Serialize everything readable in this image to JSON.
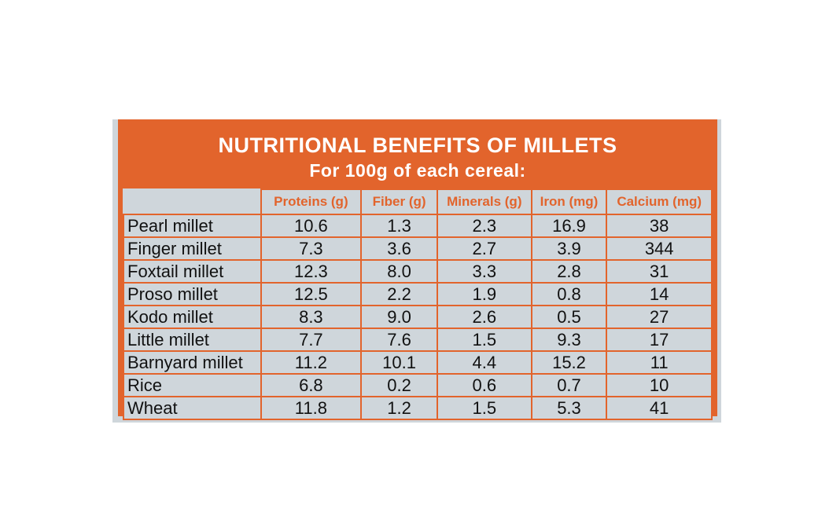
{
  "header": {
    "title": "NUTRITIONAL BENEFITS OF MILLETS",
    "subtitle": "For 100g of each cereal:"
  },
  "table": {
    "columns": [
      "Proteins (g)",
      "Fiber (g)",
      "Minerals (g)",
      "Iron (mg)",
      "Calcium (mg)"
    ],
    "rows": [
      [
        "Pearl millet",
        "10.6",
        "1.3",
        "2.3",
        "16.9",
        "38"
      ],
      [
        "Finger millet",
        "7.3",
        "3.6",
        "2.7",
        "3.9",
        "344"
      ],
      [
        "Foxtail millet",
        "12.3",
        "8.0",
        "3.3",
        "2.8",
        "31"
      ],
      [
        "Proso millet",
        "12.5",
        "2.2",
        "1.9",
        "0.8",
        "14"
      ],
      [
        "Kodo millet",
        "8.3",
        "9.0",
        "2.6",
        "0.5",
        "27"
      ],
      [
        "Little millet",
        "7.7",
        "7.6",
        "1.5",
        "9.3",
        "17"
      ],
      [
        "Barnyard millet",
        "11.2",
        "10.1",
        "4.4",
        "15.2",
        "11"
      ],
      [
        "Rice",
        "6.8",
        "0.2",
        "0.6",
        "0.7",
        "10"
      ],
      [
        "Wheat",
        "11.8",
        "1.2",
        "1.5",
        "5.3",
        "41"
      ]
    ]
  }
}
